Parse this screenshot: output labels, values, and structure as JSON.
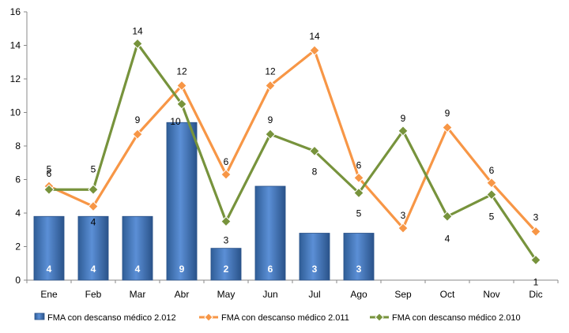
{
  "chart_data": {
    "type": "bar",
    "title": "",
    "xlabel": "",
    "ylabel": "",
    "ylim": [
      0,
      16
    ],
    "yticks": [
      "0",
      "2",
      "4",
      "6",
      "8",
      "10",
      "12",
      "14",
      "16"
    ],
    "grid": false,
    "legend_position": "bottom",
    "categories": [
      "Ene",
      "Feb",
      "Mar",
      "Abr",
      "May",
      "Jun",
      "Jul",
      "Ago",
      "Sep",
      "Oct",
      "Nov",
      "Dic"
    ],
    "series": [
      {
        "name": "FMA con descanso médico 2.012",
        "kind": "bar",
        "color": "#4f81bd",
        "values": [
          3.8,
          3.8,
          3.8,
          9.4,
          1.9,
          5.6,
          2.8,
          2.8,
          null,
          null,
          null,
          null
        ],
        "labels": [
          "4",
          "4",
          "4",
          "9",
          "2",
          "6",
          "3",
          "3",
          "",
          "",
          "",
          ""
        ]
      },
      {
        "name": "FMA con descanso médico 2.011",
        "kind": "line",
        "color": "#f79646",
        "values": [
          5.6,
          4.4,
          8.7,
          11.6,
          6.3,
          11.6,
          13.7,
          6.1,
          3.1,
          9.1,
          5.8,
          2.9
        ],
        "labels": [
          "6",
          "4",
          "9",
          "12",
          "6",
          "12",
          "14",
          "6",
          "3",
          "9",
          "6",
          "3"
        ]
      },
      {
        "name": "FMA con descanso médico 2.010",
        "kind": "line",
        "color": "#77933c",
        "values": [
          5.4,
          5.4,
          14.1,
          10.5,
          3.5,
          8.7,
          7.7,
          5.2,
          8.9,
          3.8,
          5.1,
          1.2
        ],
        "labels": [
          "5",
          "5",
          "14",
          "10",
          "3",
          "9",
          "8",
          "5",
          "9",
          "4",
          "5",
          "1"
        ]
      }
    ]
  }
}
